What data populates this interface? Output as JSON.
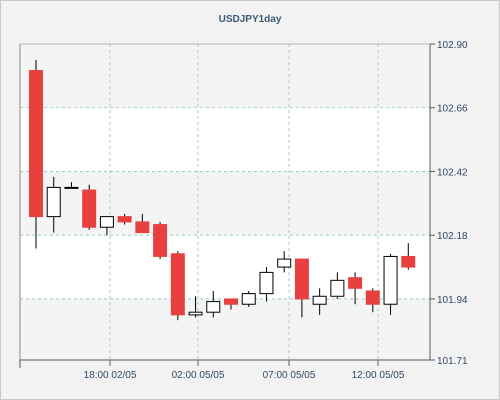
{
  "chart_data": {
    "type": "candlestick",
    "title": "USDJPY1day",
    "y_ticks": [
      "102.90",
      "102.66",
      "102.42",
      "102.18",
      "101.94",
      "101.71"
    ],
    "ylim": [
      101.71,
      102.9
    ],
    "x_ticks": [
      "18:00 02/05",
      "02:00 05/05",
      "07:00 05/05",
      "12:00 05/05"
    ],
    "grid": true,
    "colors": {
      "up_fill": "#ffffff",
      "down_fill": "#e8403f",
      "outline": "#000000",
      "grid": "#86c3c3",
      "plot_bg_a": "#ffffff",
      "plot_bg_b": "#f4f4f4",
      "frame_bg": "#f2f2f2",
      "title": "#3a5a78",
      "ticks": "#2e4a66"
    },
    "candles": [
      {
        "o": 102.8,
        "h": 102.84,
        "l": 102.13,
        "c": 102.25
      },
      {
        "o": 102.25,
        "h": 102.4,
        "l": 102.19,
        "c": 102.36
      },
      {
        "o": 102.36,
        "h": 102.38,
        "l": 102.36,
        "c": 102.36
      },
      {
        "o": 102.35,
        "h": 102.37,
        "l": 102.2,
        "c": 102.21
      },
      {
        "o": 102.21,
        "h": 102.25,
        "l": 102.18,
        "c": 102.25
      },
      {
        "o": 102.25,
        "h": 102.26,
        "l": 102.22,
        "c": 102.23
      },
      {
        "o": 102.23,
        "h": 102.26,
        "l": 102.19,
        "c": 102.19
      },
      {
        "o": 102.22,
        "h": 102.23,
        "l": 102.09,
        "c": 102.1
      },
      {
        "o": 102.11,
        "h": 102.12,
        "l": 101.86,
        "c": 101.88
      },
      {
        "o": 101.88,
        "h": 101.95,
        "l": 101.87,
        "c": 101.89
      },
      {
        "o": 101.89,
        "h": 101.97,
        "l": 101.87,
        "c": 101.93
      },
      {
        "o": 101.94,
        "h": 101.94,
        "l": 101.9,
        "c": 101.92
      },
      {
        "o": 101.92,
        "h": 101.97,
        "l": 101.91,
        "c": 101.96
      },
      {
        "o": 101.96,
        "h": 102.06,
        "l": 101.93,
        "c": 102.04
      },
      {
        "o": 102.06,
        "h": 102.12,
        "l": 102.04,
        "c": 102.09
      },
      {
        "o": 102.09,
        "h": 102.09,
        "l": 101.87,
        "c": 101.94
      },
      {
        "o": 101.92,
        "h": 101.98,
        "l": 101.88,
        "c": 101.95
      },
      {
        "o": 101.95,
        "h": 102.04,
        "l": 101.94,
        "c": 102.01
      },
      {
        "o": 102.02,
        "h": 102.04,
        "l": 101.92,
        "c": 101.98
      },
      {
        "o": 101.97,
        "h": 101.98,
        "l": 101.89,
        "c": 101.92
      },
      {
        "o": 101.92,
        "h": 102.11,
        "l": 101.88,
        "c": 102.1
      },
      {
        "o": 102.1,
        "h": 102.15,
        "l": 102.05,
        "c": 102.06
      }
    ]
  }
}
